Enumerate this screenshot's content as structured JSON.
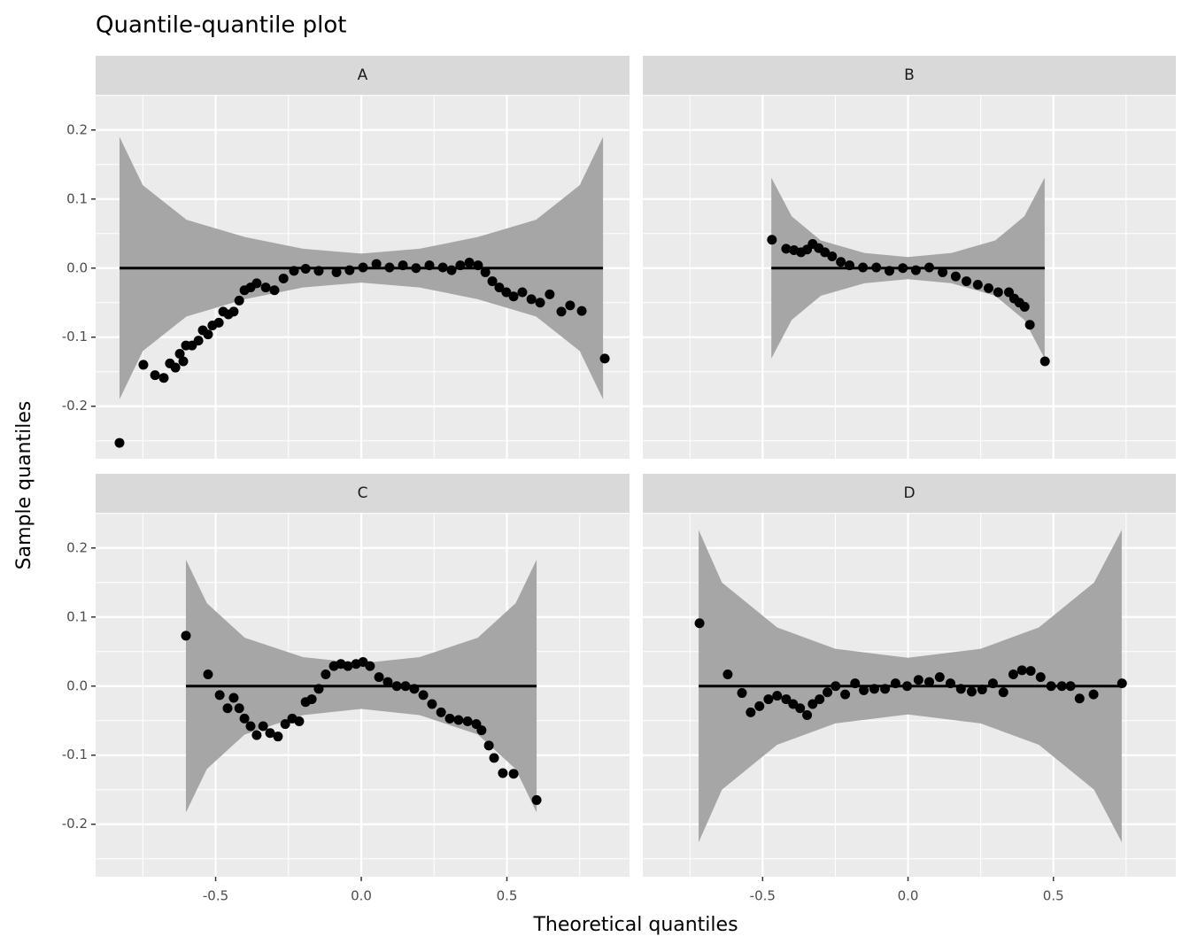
{
  "chart_data": {
    "type": "scatter",
    "title": "Quantile-quantile plot",
    "x_label": "Theoretical quantiles",
    "y_label": "Sample quantiles",
    "xlim": [
      -0.912,
      0.921
    ],
    "ylim": [
      -0.276,
      0.251
    ],
    "xticks": [
      -0.5,
      {
        "value": 0,
        "label": "0.0"
      },
      0.5
    ],
    "yticks": [
      -0.2,
      -0.1,
      {
        "value": 0,
        "label": "0.0"
      },
      0.1,
      0.2
    ],
    "xminorticks": [
      -0.75,
      -0.25,
      0.25,
      0.75
    ],
    "yminorticks": [
      -0.25,
      -0.15,
      -0.05,
      0.05,
      0.15,
      0.25
    ],
    "grid": true,
    "color": "#000000",
    "band_color": "#a6a6a6",
    "line_color": "#000000",
    "facets": [
      {
        "name": "A",
        "band": {
          "x": [
            -0.83,
            -0.75,
            -0.6,
            -0.4,
            -0.2,
            0,
            0.2,
            0.4,
            0.6,
            0.75,
            0.83
          ],
          "upper": [
            0.19,
            0.12,
            0.07,
            0.045,
            0.028,
            0.021,
            0.028,
            0.045,
            0.07,
            0.12,
            0.19
          ],
          "lower": [
            -0.19,
            -0.12,
            -0.07,
            -0.045,
            -0.028,
            -0.021,
            -0.028,
            -0.045,
            -0.07,
            -0.12,
            -0.19
          ]
        },
        "line": {
          "x": [
            -0.83,
            0.83
          ],
          "y": [
            0,
            0
          ]
        },
        "x": [
          -0.83,
          -0.748,
          -0.708,
          -0.678,
          -0.657,
          -0.638,
          -0.623,
          -0.611,
          -0.602,
          -0.581,
          -0.559,
          -0.544,
          -0.526,
          -0.511,
          -0.489,
          -0.474,
          -0.456,
          -0.438,
          -0.419,
          -0.401,
          -0.38,
          -0.359,
          -0.328,
          -0.298,
          -0.267,
          -0.231,
          -0.191,
          -0.146,
          -0.085,
          -0.04,
          0.006,
          0.052,
          0.097,
          0.143,
          0.188,
          0.234,
          0.28,
          0.31,
          0.34,
          0.371,
          0.401,
          0.426,
          0.45,
          0.474,
          0.498,
          0.523,
          0.553,
          0.584,
          0.614,
          0.647,
          0.687,
          0.717,
          0.757,
          0.836
        ],
        "y": [
          -0.253,
          -0.14,
          -0.155,
          -0.159,
          -0.138,
          -0.144,
          -0.124,
          -0.135,
          -0.112,
          -0.112,
          -0.105,
          -0.09,
          -0.096,
          -0.083,
          -0.079,
          -0.063,
          -0.067,
          -0.063,
          -0.047,
          -0.032,
          -0.028,
          -0.022,
          -0.028,
          -0.032,
          -0.015,
          -0.004,
          -0.001,
          -0.004,
          -0.006,
          -0.003,
          0.001,
          0.006,
          0.001,
          0.004,
          0,
          0.004,
          0.001,
          -0.003,
          0.004,
          0.008,
          0.004,
          -0.006,
          -0.019,
          -0.028,
          -0.035,
          -0.041,
          -0.035,
          -0.045,
          -0.05,
          -0.038,
          -0.063,
          -0.054,
          -0.062,
          -0.131
        ]
      },
      {
        "name": "B",
        "band": {
          "x": [
            -0.47,
            -0.4,
            -0.3,
            -0.15,
            0,
            0.15,
            0.3,
            0.4,
            0.47
          ],
          "upper": [
            0.131,
            0.075,
            0.04,
            0.022,
            0.016,
            0.022,
            0.04,
            0.075,
            0.131
          ],
          "lower": [
            -0.131,
            -0.075,
            -0.04,
            -0.022,
            -0.016,
            -0.022,
            -0.04,
            -0.075,
            -0.131
          ]
        },
        "line": {
          "x": [
            -0.47,
            0.47
          ],
          "y": [
            0,
            0
          ]
        },
        "x": [
          -0.468,
          -0.419,
          -0.392,
          -0.368,
          -0.347,
          -0.328,
          -0.307,
          -0.286,
          -0.261,
          -0.231,
          -0.201,
          -0.155,
          -0.109,
          -0.064,
          -0.018,
          0.027,
          0.073,
          0.119,
          0.164,
          0.201,
          0.24,
          0.277,
          0.31,
          0.347,
          0.365,
          0.383,
          0.401,
          0.419,
          0.471
        ],
        "y": [
          0.041,
          0.028,
          0.026,
          0.023,
          0.027,
          0.035,
          0.029,
          0.023,
          0.017,
          0.009,
          0.004,
          0.001,
          0.001,
          -0.004,
          0,
          -0.003,
          0.001,
          -0.006,
          -0.012,
          -0.019,
          -0.024,
          -0.029,
          -0.035,
          -0.035,
          -0.044,
          -0.05,
          -0.056,
          -0.082,
          -0.135
        ]
      },
      {
        "name": "C",
        "band": {
          "x": [
            -0.602,
            -0.53,
            -0.4,
            -0.2,
            0,
            0.2,
            0.4,
            0.53,
            0.602
          ],
          "upper": [
            0.183,
            0.12,
            0.07,
            0.042,
            0.033,
            0.042,
            0.07,
            0.12,
            0.183
          ],
          "lower": [
            -0.183,
            -0.12,
            -0.07,
            -0.042,
            -0.033,
            -0.042,
            -0.07,
            -0.12,
            -0.183
          ]
        },
        "line": {
          "x": [
            -0.602,
            0.602
          ],
          "y": [
            0,
            0
          ]
        },
        "x": [
          -0.602,
          -0.526,
          -0.486,
          -0.459,
          -0.438,
          -0.419,
          -0.401,
          -0.38,
          -0.359,
          -0.337,
          -0.313,
          -0.286,
          -0.261,
          -0.237,
          -0.213,
          -0.191,
          -0.17,
          -0.146,
          -0.122,
          -0.094,
          -0.07,
          -0.046,
          -0.018,
          0.006,
          0.03,
          0.061,
          0.091,
          0.122,
          0.152,
          0.182,
          0.213,
          0.243,
          0.274,
          0.304,
          0.334,
          0.365,
          0.395,
          0.413,
          0.438,
          0.456,
          0.486,
          0.523,
          0.602
        ],
        "y": [
          0.073,
          0.017,
          -0.013,
          -0.032,
          -0.017,
          -0.032,
          -0.047,
          -0.058,
          -0.071,
          -0.058,
          -0.068,
          -0.073,
          -0.055,
          -0.047,
          -0.051,
          -0.023,
          -0.019,
          -0.004,
          0.017,
          0.029,
          0.032,
          0.029,
          0.032,
          0.035,
          0.029,
          0.013,
          0.006,
          0,
          0,
          -0.004,
          -0.013,
          -0.026,
          -0.038,
          -0.047,
          -0.049,
          -0.051,
          -0.055,
          -0.064,
          -0.086,
          -0.104,
          -0.126,
          -0.127,
          -0.165
        ]
      },
      {
        "name": "D",
        "band": {
          "x": [
            -0.72,
            -0.64,
            -0.45,
            -0.25,
            0,
            0.25,
            0.45,
            0.64,
            0.735
          ],
          "upper": [
            0.226,
            0.15,
            0.085,
            0.054,
            0.041,
            0.054,
            0.085,
            0.15,
            0.226
          ],
          "lower": [
            -0.226,
            -0.15,
            -0.085,
            -0.054,
            -0.041,
            -0.054,
            -0.085,
            -0.15,
            -0.226
          ]
        },
        "line": {
          "x": [
            -0.72,
            0.735
          ],
          "y": [
            0,
            0
          ]
        },
        "x": [
          -0.717,
          -0.62,
          -0.571,
          -0.541,
          -0.511,
          -0.48,
          -0.45,
          -0.419,
          -0.395,
          -0.371,
          -0.347,
          -0.328,
          -0.304,
          -0.277,
          -0.249,
          -0.216,
          -0.182,
          -0.152,
          -0.116,
          -0.079,
          -0.043,
          -0.003,
          0.036,
          0.073,
          0.109,
          0.146,
          0.182,
          0.219,
          0.255,
          0.292,
          0.328,
          0.362,
          0.392,
          0.422,
          0.456,
          0.492,
          0.529,
          0.559,
          0.59,
          0.638,
          0.736
        ],
        "y": [
          0.091,
          0.017,
          -0.01,
          -0.038,
          -0.029,
          -0.019,
          -0.014,
          -0.019,
          -0.026,
          -0.032,
          -0.042,
          -0.026,
          -0.019,
          -0.009,
          0,
          -0.012,
          0.004,
          -0.006,
          -0.004,
          -0.004,
          0.004,
          0,
          0.009,
          0.006,
          0.013,
          0.004,
          -0.004,
          -0.008,
          -0.005,
          0.004,
          -0.009,
          0.017,
          0.023,
          0.022,
          0.013,
          0,
          0,
          0,
          -0.018,
          -0.012,
          0.004
        ]
      }
    ]
  }
}
